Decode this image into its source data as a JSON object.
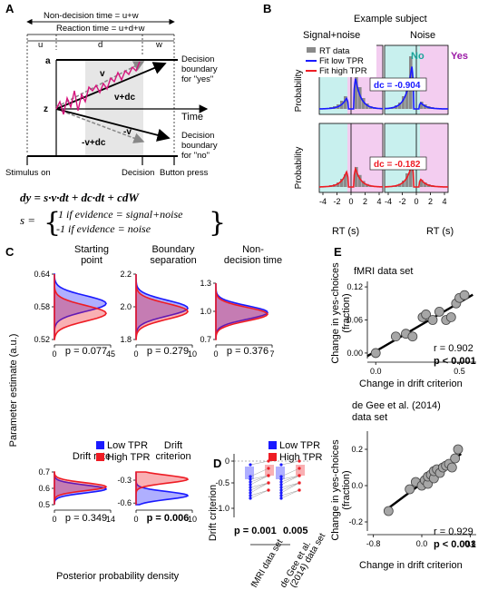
{
  "panels": {
    "a": "A",
    "b": "B",
    "c": "C",
    "d": "D",
    "e": "E"
  },
  "a": {
    "nondecision": "Non-decision time = u+w",
    "reaction": "Reaction time = u+d+w",
    "u": "u",
    "d": "d",
    "w": "w",
    "a_lbl": "a",
    "z_lbl": "z",
    "v1": "v",
    "v2": "v+dc",
    "v3": "-v",
    "v4": "-v+dc",
    "time": "Time",
    "db_yes": [
      "Decision",
      "boundary",
      "for \"yes\""
    ],
    "db_no": [
      "Decision",
      "boundary",
      "for \"no\""
    ],
    "stim": "Stimulus on",
    "decision": "Decision",
    "button": "Button press",
    "eq1": "dy = s·v·dt + dc·dt + cdW",
    "eq2_s": "s =",
    "eq2_l1": "1 if evidence = signal+noise",
    "eq2_l2": "-1 if evidence = noise"
  },
  "b": {
    "title": "Example subject",
    "col1": "Signal+noise",
    "col2": "Noise",
    "no": "No",
    "yes": "Yes",
    "legend": [
      "RT data",
      "Fit low TPR",
      "Fit high TPR"
    ],
    "dc_top": "dc = -0.904",
    "dc_bot": "dc = -0.182",
    "ylabel": "Probability",
    "xlabel": "RT (s)",
    "ticks": [
      "-4",
      "-2",
      "0",
      "2",
      "4"
    ]
  },
  "c": {
    "ylabel": "Parameter estimate (a.u.)",
    "xlabel": "Posterior probability density",
    "legend": [
      "Low TPR",
      "High TPR"
    ],
    "sub": [
      {
        "title": [
          "Starting",
          "point"
        ],
        "yticks": [
          "0.64",
          "0.58",
          "0.52"
        ],
        "xticks": [
          "0",
          "45"
        ],
        "p": "p = 0.077"
      },
      {
        "title": [
          "Boundary",
          "separation"
        ],
        "yticks": [
          "2.2",
          "2.0",
          "1.8"
        ],
        "xticks": [
          "0",
          "10"
        ],
        "p": "p = 0.279"
      },
      {
        "title": [
          "Non-",
          "decision time"
        ],
        "yticks": [
          "1.3",
          "1.0",
          "0.7"
        ],
        "xticks": [
          "0",
          "7"
        ],
        "p": "p = 0.376"
      },
      {
        "title": [
          "Drift rate"
        ],
        "yticks": [
          "0.7",
          "0.6",
          "0.5"
        ],
        "xticks": [
          "0",
          "14"
        ],
        "p": "p = 0.349"
      },
      {
        "title": [
          "Drift",
          "criterion"
        ],
        "yticks": [
          "-0.3",
          "-0.6"
        ],
        "xticks": [
          "0",
          "10"
        ],
        "p": "p = 0.006"
      }
    ]
  },
  "d": {
    "ylabel": "Drift criterion",
    "yticks": [
      "0",
      "-0.5",
      "-1.0"
    ],
    "legend": [
      "Low TPR",
      "High TPR"
    ],
    "p1": "p = 0.001",
    "p2": "0.005",
    "x1": "fMRI data set",
    "x2": [
      "de Gee et al.",
      "(2014) data set"
    ]
  },
  "e": {
    "title1": "fMRI data set",
    "title2": [
      "de Gee et al. (2014)",
      "data set"
    ],
    "ylabel": [
      "Change in yes-choices",
      "(fraction)"
    ],
    "xlabel": "Change in drift criterion",
    "r1": "r = 0.902",
    "p1": "p < 0.001",
    "r2": "r = 0.929",
    "p2": "p < 0.001",
    "yticks1": [
      "0.12",
      "0.06",
      "0.00"
    ],
    "xticks1": [
      "0.0",
      "0.5"
    ],
    "yticks2": [
      "0.2",
      "0.0",
      "-0.2"
    ],
    "xticks2": [
      "-0.8",
      "0.0",
      "0.8"
    ]
  },
  "colors": {
    "blue": "#1a1aff",
    "red": "#ee1c24",
    "cyan": "#c8f0ee",
    "magenta": "#f3cdf0",
    "gray": "#8a8a8a",
    "violet": "#9b3a9b"
  },
  "chart_data": [
    {
      "type": "scatter",
      "title": "fMRI data set",
      "xlabel": "Change in drift criterion",
      "ylabel": "Change in yes-choices (fraction)",
      "x": [
        0.0,
        0.12,
        0.18,
        0.22,
        0.28,
        0.3,
        0.34,
        0.38,
        0.42,
        0.45,
        0.48,
        0.5,
        0.53
      ],
      "y": [
        0.0,
        0.03,
        0.035,
        0.03,
        0.065,
        0.07,
        0.06,
        0.075,
        0.06,
        0.065,
        0.09,
        0.1,
        0.105
      ],
      "ylim": [
        -0.01,
        0.13
      ],
      "xlim": [
        -0.05,
        0.6
      ]
    },
    {
      "type": "scatter",
      "title": "de Gee et al. (2014) data set",
      "xlabel": "Change in drift criterion",
      "ylabel": "Change in yes-choices (fraction)",
      "x": [
        -0.55,
        -0.2,
        -0.1,
        0.0,
        0.05,
        0.1,
        0.1,
        0.15,
        0.2,
        0.2,
        0.25,
        0.3,
        0.35,
        0.4,
        0.45,
        0.5,
        0.55,
        0.6
      ],
      "y": [
        -0.14,
        -0.02,
        0.02,
        0.0,
        0.03,
        0.01,
        0.05,
        0.06,
        0.04,
        0.08,
        0.09,
        0.07,
        0.1,
        0.11,
        0.12,
        0.1,
        0.15,
        0.2
      ],
      "ylim": [
        -0.25,
        0.3
      ],
      "xlim": [
        -0.9,
        0.9
      ]
    }
  ]
}
